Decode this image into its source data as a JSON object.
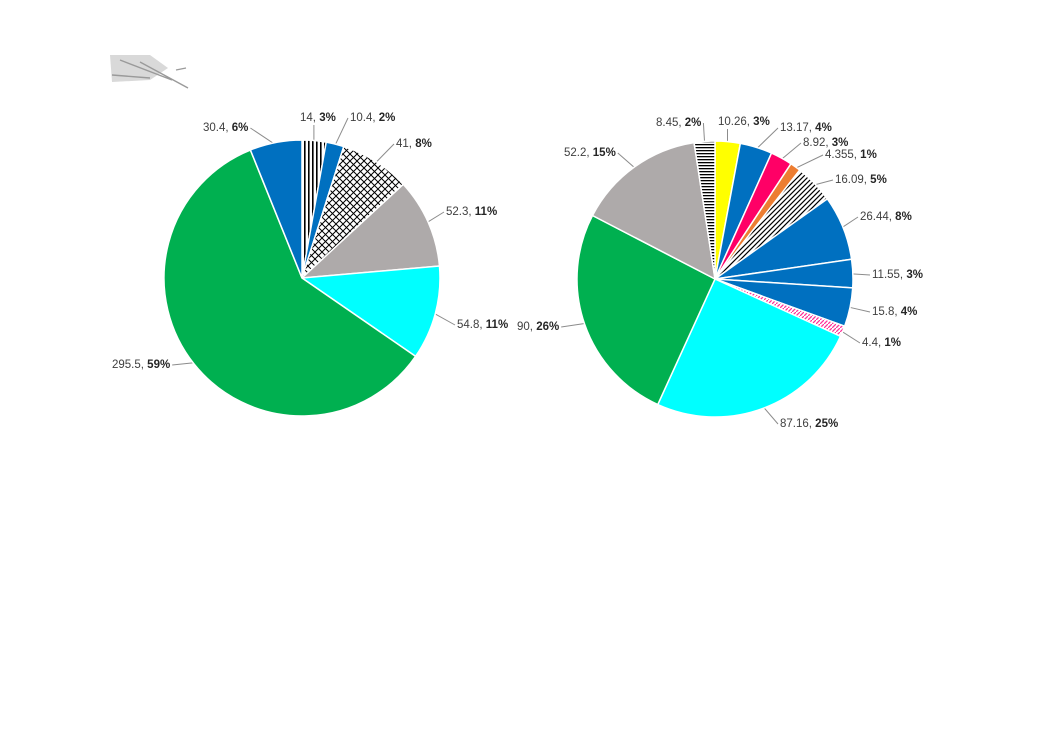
{
  "chart_data": [
    {
      "type": "pie",
      "start_angle_deg": 0,
      "direction": "clockwise",
      "slices": [
        {
          "value": 14,
          "value_label": "14",
          "percent_label": "3%",
          "fill": "stripes-v"
        },
        {
          "value": 10.4,
          "value_label": "10.4",
          "percent_label": "2%",
          "fill": "#0070c0"
        },
        {
          "value": 41,
          "value_label": "41",
          "percent_label": "8%",
          "fill": "crosshatch"
        },
        {
          "value": 52.3,
          "value_label": "52.3",
          "percent_label": "11%",
          "fill": "#aeaaaa"
        },
        {
          "value": 54.8,
          "value_label": "54.8",
          "percent_label": "11%",
          "fill": "#00ffff"
        },
        {
          "value": 295.5,
          "value_label": "295.5",
          "percent_label": "59%",
          "fill": "#00b050"
        },
        {
          "value": 30.4,
          "value_label": "30.4",
          "percent_label": "6%",
          "fill": "#0070c0"
        }
      ]
    },
    {
      "type": "pie",
      "start_angle_deg": 0,
      "direction": "clockwise",
      "slices": [
        {
          "value": 10.26,
          "value_label": "10.26",
          "percent_label": "3%",
          "fill": "#ffff00"
        },
        {
          "value": 13.17,
          "value_label": "13.17",
          "percent_label": "4%",
          "fill": "#0070c0"
        },
        {
          "value": 8.92,
          "value_label": "8.92",
          "percent_label": "3%",
          "fill": "#ff0066"
        },
        {
          "value": 4.355,
          "value_label": "4.355",
          "percent_label": "1%",
          "fill": "#ed7d31"
        },
        {
          "value": 16.09,
          "value_label": "16.09",
          "percent_label": "5%",
          "fill": "stripes-diag"
        },
        {
          "value": 26.44,
          "value_label": "26.44",
          "percent_label": "8%",
          "fill": "#0070c0"
        },
        {
          "value": 11.55,
          "value_label": "11.55",
          "percent_label": "3%",
          "fill": "#0070c0"
        },
        {
          "value": 15.8,
          "value_label": "15.8",
          "percent_label": "4%",
          "fill": "#0070c0"
        },
        {
          "value": 4.4,
          "value_label": "4.4",
          "percent_label": "1%",
          "fill": "pink-stripes"
        },
        {
          "value": 87.16,
          "value_label": "87.16",
          "percent_label": "25%",
          "fill": "#00ffff"
        },
        {
          "value": 90,
          "value_label": "90",
          "percent_label": "26%",
          "fill": "#00b050"
        },
        {
          "value": 52.2,
          "value_label": "52.2",
          "percent_label": "15%",
          "fill": "#aeaaaa"
        },
        {
          "value": 8.45,
          "value_label": "8.45",
          "percent_label": "2%",
          "fill": "stripes-h"
        }
      ]
    }
  ]
}
